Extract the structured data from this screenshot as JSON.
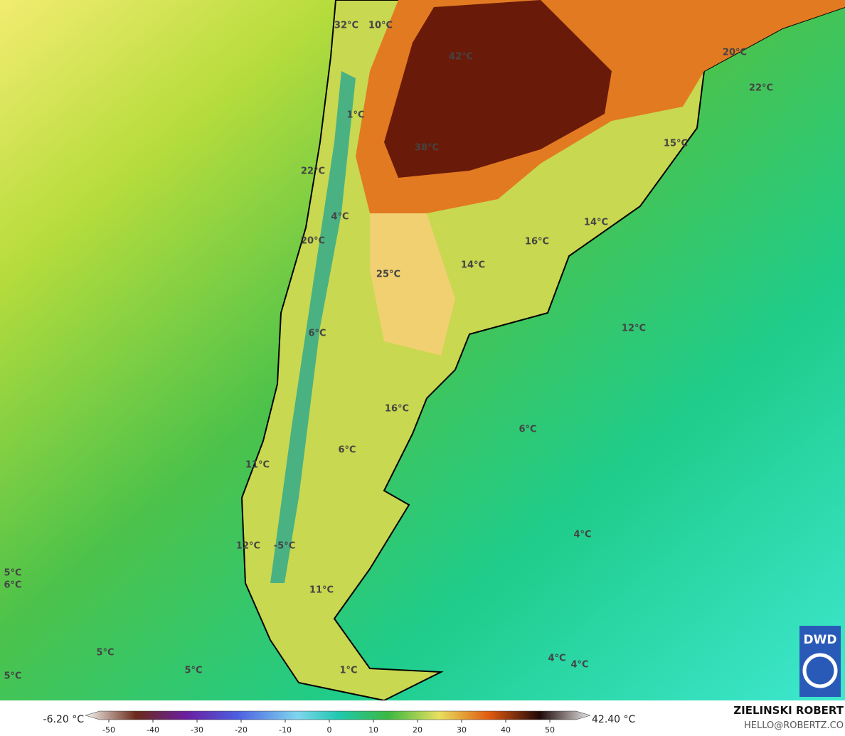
{
  "map_labels": [
    "32°C",
    "10°C",
    "42°C",
    "20°C",
    "22°C",
    "1°C",
    "38°C",
    "15°C",
    "22°C",
    "4°C",
    "14°C",
    "20°C",
    "16°C",
    "25°C",
    "14°C",
    "6°C",
    "12°C",
    "16°C",
    "6°C",
    "6°C",
    "11°C",
    "12°C",
    "-5°C",
    "4°C",
    "5°C",
    "6°C",
    "11°C",
    "5°C",
    "5°C",
    "5°C",
    "4°C",
    "4°C",
    "1°C"
  ],
  "colorbar": {
    "min_label": "-6.20 °C",
    "max_label": "42.40 °C",
    "ticks": [
      -50,
      -40,
      -30,
      -20,
      -10,
      0,
      10,
      20,
      30,
      40,
      50
    ]
  },
  "credit": {
    "name": "ZIELINSKI ROBERT",
    "email": "HELLO@ROBERTZ.CO"
  },
  "logo": "DWD"
}
